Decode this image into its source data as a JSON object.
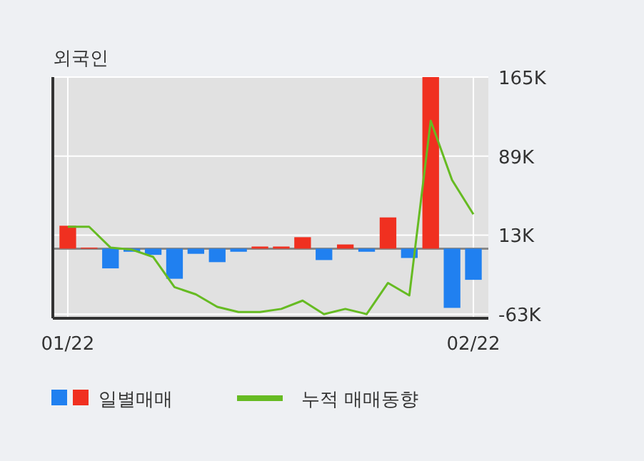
{
  "chart_data": {
    "type": "bar",
    "title": "외국인",
    "categories": [
      "01/22",
      null,
      null,
      null,
      null,
      null,
      null,
      null,
      null,
      null,
      null,
      null,
      null,
      null,
      null,
      null,
      null,
      null,
      null,
      "02/22"
    ],
    "series": [
      {
        "name": "일별매매",
        "colors": [
          "#f03020",
          "#f03020",
          "#2080f0",
          "#2080f0",
          "#2080f0",
          "#2080f0",
          "#2080f0",
          "#2080f0",
          "#2080f0",
          "#f03020",
          "#f03020",
          "#f03020",
          "#2080f0",
          "#f03020",
          "#2080f0",
          "#f03020",
          "#2080f0",
          "#f03020",
          "#2080f0",
          "#2080f0"
        ],
        "values": [
          22,
          1,
          -19,
          -3,
          -6,
          -29,
          -5,
          -13,
          -3,
          2,
          2,
          11,
          -11,
          4,
          -3,
          30,
          -9,
          165,
          -57,
          -30
        ]
      },
      {
        "name": "누적 매매동향",
        "type": "line",
        "color": "#66bb22",
        "values": [
          21,
          21,
          1,
          -1,
          -8,
          -37,
          -44,
          -56,
          -61,
          -61,
          -58,
          -50,
          -63,
          -58,
          -63,
          -33,
          -45,
          123,
          66,
          33
        ]
      }
    ],
    "ylim": [
      -67,
      165
    ],
    "yticks": [
      {
        "value": 165,
        "label": "165K"
      },
      {
        "value": 89,
        "label": "89K"
      },
      {
        "value": 13,
        "label": "13K"
      },
      {
        "value": -63,
        "label": "-63K"
      }
    ],
    "grid": true,
    "legend": "bottom left"
  }
}
